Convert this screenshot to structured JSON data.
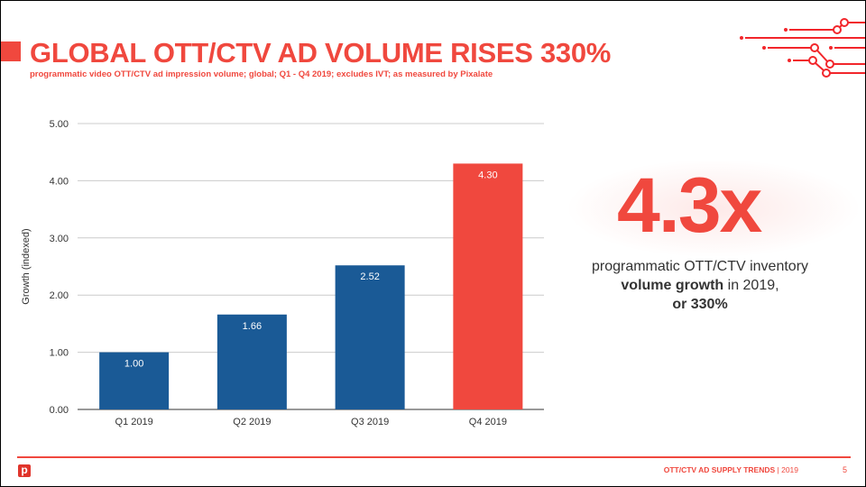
{
  "header": {
    "title": "GLOBAL OTT/CTV AD VOLUME RISES 330%",
    "subtitle": "programmatic video OTT/CTV ad impression volume; global; Q1 - Q4 2019; excludes IVT; as measured by Pixalate"
  },
  "highlight": {
    "value": "4.3x",
    "line1": "programmatic OTT/CTV inventory",
    "line2_bold": "volume growth",
    "line2_rest": " in 2019,",
    "line3": "or 330%"
  },
  "footer": {
    "label": "OTT/CTV AD SUPPLY TRENDS",
    "year": " | 2019",
    "page": "5",
    "logo": "p"
  },
  "colors": {
    "accent": "#f0483e",
    "bar": "#1a5a96",
    "highlight_bar": "#f0483e"
  },
  "chart_data": {
    "type": "bar",
    "categories": [
      "Q1 2019",
      "Q2 2019",
      "Q3 2019",
      "Q4 2019"
    ],
    "values": [
      1.0,
      1.66,
      2.52,
      4.3
    ],
    "data_labels": [
      "1.00",
      "1.66",
      "2.52",
      "4.30"
    ],
    "ylabel": "Growth (indexed)",
    "xlabel": "",
    "ylim": [
      0,
      5
    ],
    "yticks": [
      "0.00",
      "1.00",
      "2.00",
      "3.00",
      "4.00",
      "5.00"
    ],
    "grid": true,
    "highlighted_category": "Q4 2019"
  }
}
